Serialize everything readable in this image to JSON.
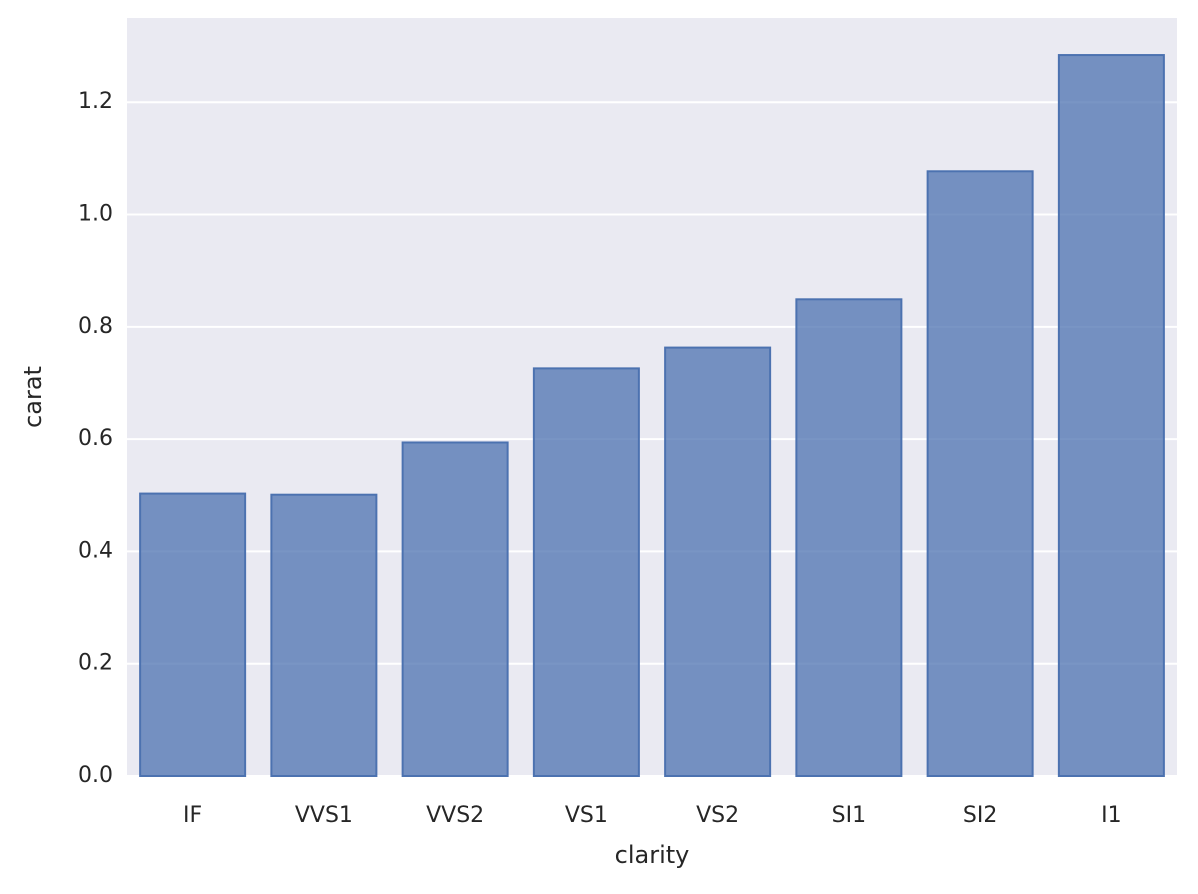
{
  "chart_data": {
    "type": "bar",
    "xlabel": "clarity",
    "ylabel": "carat",
    "categories": [
      "IF",
      "VVS1",
      "VVS2",
      "VS1",
      "VS2",
      "SI1",
      "SI2",
      "I1"
    ],
    "values": [
      0.503,
      0.501,
      0.594,
      0.726,
      0.763,
      0.849,
      1.077,
      1.284
    ],
    "color": "#4c72b0",
    "ylim": [
      0,
      1.35
    ],
    "yticks": [
      {
        "value": 0,
        "label": "0.0"
      },
      0.2,
      0.4,
      0.6,
      0.8,
      {
        "value": 1,
        "label": "1.0"
      },
      1.2
    ],
    "grid": true
  }
}
